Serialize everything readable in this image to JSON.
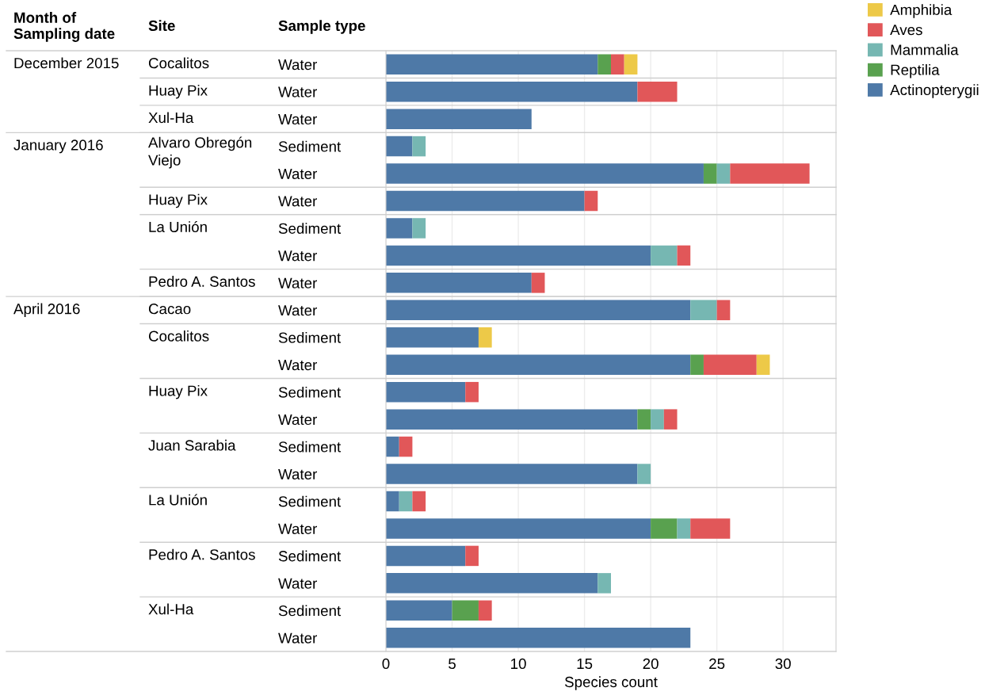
{
  "chart_data": {
    "type": "bar",
    "orientation": "horizontal",
    "stacked": true,
    "grid": "x",
    "legend": "top right",
    "xlabel": "Species count",
    "categories": [
      "Water",
      "Water",
      "Water",
      "Sediment",
      "Water",
      "Water",
      "Sediment",
      "Water",
      "Water",
      "Water",
      "Sediment",
      "Water",
      "Sediment",
      "Water",
      "Sediment",
      "Water",
      "Sediment",
      "Water",
      "Sediment",
      "Water",
      "Sediment",
      "Water"
    ],
    "xlim": [
      0,
      34
    ],
    "xticks": [
      0,
      5,
      10,
      15,
      20,
      25,
      30
    ],
    "annotations": [
      "Month of\nSampling date",
      "Site",
      "Sample type",
      "December 2015",
      "Cocalitos",
      "Huay Pix",
      "Xul-Ha",
      "January 2016",
      "Alvaro Obregón\nViejo",
      "Huay Pix",
      "La Unión",
      "Pedro A. Santos",
      "April 2016",
      "Cacao",
      "Cocalitos",
      "Huay Pix",
      "Juan Sarabia",
      "La Unión",
      "Pedro A. Santos",
      "Xul-Ha"
    ],
    "series": [
      {
        "name": "Actinopterygii",
        "color": "#4e79a7",
        "values": [
          16,
          19,
          11,
          2,
          24,
          15,
          2,
          20,
          11,
          23,
          7,
          23,
          6,
          19,
          1,
          19,
          1,
          20,
          6,
          16,
          5,
          23
        ]
      },
      {
        "name": "Reptilia",
        "color": "#59a14f",
        "values": [
          1,
          null,
          null,
          null,
          1,
          null,
          null,
          null,
          null,
          null,
          null,
          1,
          null,
          1,
          null,
          null,
          null,
          2,
          null,
          null,
          2,
          null
        ]
      },
      {
        "name": "Mammalia",
        "color": "#76b7b2",
        "values": [
          null,
          null,
          null,
          1,
          1,
          null,
          1,
          2,
          null,
          2,
          null,
          null,
          null,
          1,
          null,
          1,
          1,
          1,
          null,
          1,
          null,
          null
        ]
      },
      {
        "name": "Aves",
        "color": "#e15759",
        "values": [
          1,
          3,
          null,
          null,
          6,
          1,
          null,
          1,
          1,
          1,
          null,
          4,
          1,
          1,
          1,
          null,
          1,
          3,
          1,
          null,
          1,
          null
        ]
      },
      {
        "name": "Amphibia",
        "color": "#edc948",
        "values": [
          1,
          null,
          null,
          null,
          null,
          null,
          null,
          null,
          null,
          null,
          1,
          1,
          null,
          null,
          null,
          null,
          null,
          null,
          null,
          null,
          null,
          null
        ]
      }
    ]
  }
}
